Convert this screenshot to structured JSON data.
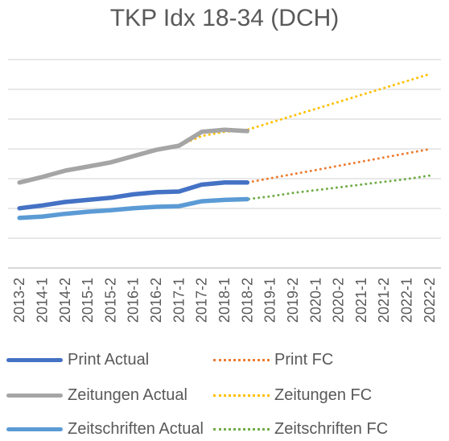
{
  "chart_data": {
    "type": "line",
    "title": "TKP Idx 18-34 (DCH)",
    "categories": [
      "2013-2",
      "2014-1",
      "2014-2",
      "2015-1",
      "2015-2",
      "2016-1",
      "2016-2",
      "2017-1",
      "2017-2",
      "2018-1",
      "2018-2",
      "2019-1",
      "2019-2",
      "2020-1",
      "2020-2",
      "2021-1",
      "2021-2",
      "2022-1",
      "2022-2"
    ],
    "ylim": [
      0,
      300
    ],
    "grid": true,
    "legend_position": "bottom",
    "series": [
      {
        "name": "Print Actual",
        "style": "solid",
        "color": "#4472C4",
        "values": [
          86,
          90,
          95,
          98,
          101,
          106,
          109,
          110,
          120,
          123,
          123,
          null,
          null,
          null,
          null,
          null,
          null,
          null,
          null
        ]
      },
      {
        "name": "Print FC",
        "style": "dotted",
        "color": "#ED7D31",
        "values": [
          86,
          90,
          95,
          98,
          101,
          106,
          109,
          110,
          120,
          123,
          123,
          129,
          135,
          141,
          147,
          153,
          159,
          165,
          171
        ]
      },
      {
        "name": "Zeitungen Actual",
        "style": "solid",
        "color": "#A5A5A5",
        "values": [
          123,
          131,
          140,
          146,
          152,
          161,
          170,
          176,
          196,
          199,
          197,
          null,
          null,
          null,
          null,
          null,
          null,
          null,
          null
        ]
      },
      {
        "name": "Zeitungen FC",
        "style": "dotted",
        "color": "#FFC000",
        "values": [
          123,
          131,
          140,
          146,
          152,
          161,
          170,
          176,
          190,
          196,
          199,
          209,
          219,
          229,
          239,
          249,
          259,
          269,
          279
        ]
      },
      {
        "name": "Zeitschriften Actual",
        "style": "solid",
        "color": "#5B9BD5",
        "values": [
          72,
          74,
          78,
          81,
          83,
          86,
          88,
          89,
          96,
          98,
          99,
          null,
          null,
          null,
          null,
          null,
          null,
          null,
          null
        ]
      },
      {
        "name": "Zeitschriften FC",
        "style": "dotted",
        "color": "#70AD47",
        "values": [
          72,
          74,
          78,
          81,
          83,
          86,
          88,
          89,
          96,
          98,
          99,
          103,
          108,
          112,
          116,
          120,
          124,
          128,
          133
        ]
      }
    ]
  },
  "legend": [
    {
      "label": "Print Actual",
      "color": "#4472C4",
      "style": "solid"
    },
    {
      "label": "Print FC",
      "color": "#ED7D31",
      "style": "dotted"
    },
    {
      "label": "Zeitungen Actual",
      "color": "#A5A5A5",
      "style": "solid"
    },
    {
      "label": "Zeitungen FC",
      "color": "#FFC000",
      "style": "dotted"
    },
    {
      "label": "Zeitschriften Actual",
      "color": "#5B9BD5",
      "style": "solid"
    },
    {
      "label": "Zeitschriften FC",
      "color": "#70AD47",
      "style": "dotted"
    }
  ]
}
